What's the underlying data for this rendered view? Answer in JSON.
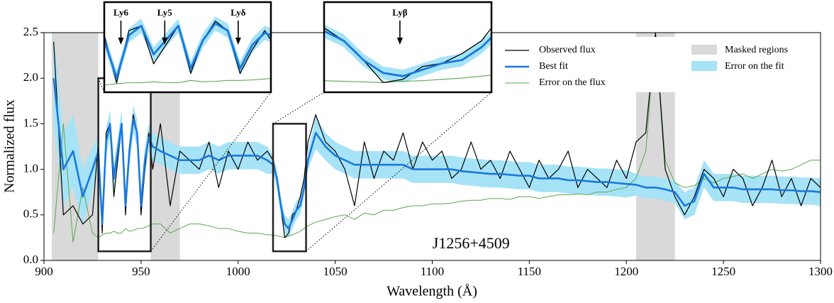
{
  "chart_data": {
    "type": "line",
    "xlabel": "Wavelength (Å)",
    "ylabel": "Normalized flux",
    "xlim": [
      900,
      1300
    ],
    "ylim": [
      0,
      2.5
    ],
    "xticks": [
      900,
      950,
      1000,
      1050,
      1100,
      1150,
      1200,
      1250,
      1300
    ],
    "yticks": [
      {
        "value": 0,
        "label": "0.0"
      },
      0.5,
      {
        "value": 1,
        "label": "1.0"
      },
      1.5,
      {
        "value": 2,
        "label": "2.0"
      },
      2.5
    ],
    "annotation": {
      "text": "J1256+4509",
      "x": 1120,
      "y": 0.17
    },
    "x": [
      900,
      905,
      910,
      915,
      920,
      925,
      928,
      930,
      932,
      934,
      936,
      938,
      940,
      942,
      944,
      946,
      948,
      950,
      952,
      954,
      956,
      960,
      965,
      970,
      975,
      980,
      985,
      990,
      995,
      1000,
      1005,
      1010,
      1015,
      1018,
      1020,
      1022,
      1024,
      1026,
      1028,
      1030,
      1032,
      1034,
      1036,
      1040,
      1045,
      1050,
      1055,
      1060,
      1065,
      1070,
      1075,
      1080,
      1085,
      1090,
      1095,
      1100,
      1105,
      1110,
      1115,
      1120,
      1125,
      1130,
      1135,
      1140,
      1145,
      1150,
      1155,
      1160,
      1165,
      1170,
      1175,
      1180,
      1185,
      1190,
      1195,
      1200,
      1205,
      1210,
      1215,
      1220,
      1225,
      1230,
      1235,
      1240,
      1245,
      1250,
      1255,
      1260,
      1265,
      1270,
      1275,
      1280,
      1285,
      1290,
      1295,
      1300
    ],
    "series": [
      {
        "name": "Observed flux",
        "color": "#000000",
        "width": 1.2,
        "values": [
          null,
          2.4,
          0.5,
          0.6,
          0.4,
          0.5,
          1.3,
          0.3,
          1.4,
          1.5,
          0.7,
          1.1,
          1.5,
          0.5,
          1.2,
          1.6,
          1.4,
          0.5,
          1.0,
          1.4,
          1.0,
          1.5,
          0.6,
          1.2,
          1.1,
          1.0,
          1.3,
          0.8,
          1.2,
          1.0,
          1.3,
          1.1,
          1.2,
          1.1,
          0.9,
          0.6,
          0.25,
          0.3,
          0.5,
          0.55,
          0.7,
          0.9,
          1.3,
          1.6,
          1.3,
          1.2,
          1.0,
          0.6,
          1.3,
          0.9,
          1.2,
          1.1,
          1.4,
          1.0,
          1.3,
          1.1,
          1.2,
          0.9,
          1.0,
          1.3,
          1.0,
          1.1,
          0.9,
          1.2,
          1.0,
          0.8,
          1.1,
          0.9,
          1.0,
          1.2,
          0.8,
          1.0,
          0.9,
          0.8,
          1.1,
          0.9,
          1.3,
          1.4,
          2.5,
          1.0,
          0.7,
          0.5,
          0.7,
          1.0,
          0.9,
          0.7,
          1.0,
          0.9,
          0.6,
          0.8,
          1.1,
          0.7,
          0.9,
          0.6,
          0.9,
          0.8
        ]
      },
      {
        "name": "Best fit",
        "color": "#1a78dc",
        "width": 2.6,
        "values": [
          null,
          2.0,
          1.0,
          1.2,
          0.7,
          1.0,
          1.2,
          0.4,
          1.3,
          1.5,
          0.9,
          1.2,
          1.5,
          0.6,
          1.2,
          1.55,
          1.4,
          0.6,
          1.1,
          1.35,
          1.25,
          1.2,
          1.15,
          1.1,
          1.1,
          1.1,
          1.15,
          1.1,
          1.15,
          1.15,
          1.15,
          1.15,
          1.1,
          1.05,
          0.9,
          0.6,
          0.4,
          0.35,
          0.45,
          0.55,
          0.6,
          0.8,
          1.1,
          1.4,
          1.25,
          1.15,
          1.1,
          1.05,
          1.05,
          1.05,
          1.05,
          1.05,
          1.05,
          1.0,
          1.0,
          1.0,
          1.0,
          1.0,
          0.98,
          0.97,
          0.96,
          0.95,
          0.95,
          0.94,
          0.93,
          0.93,
          0.9,
          0.9,
          0.9,
          0.88,
          0.88,
          0.87,
          0.86,
          0.86,
          0.85,
          0.84,
          0.83,
          0.8,
          0.8,
          0.78,
          0.75,
          0.6,
          0.65,
          0.95,
          0.8,
          0.8,
          0.8,
          0.78,
          0.78,
          0.78,
          0.78,
          0.77,
          0.77,
          0.76,
          0.76,
          0.75
        ]
      },
      {
        "name": "Error on the flux",
        "color": "#5aa84f",
        "width": 1,
        "values": [
          null,
          0.3,
          1.5,
          0.2,
          0.8,
          0.3,
          0.25,
          0.28,
          0.3,
          0.3,
          0.32,
          0.3,
          0.3,
          0.35,
          0.32,
          0.33,
          0.35,
          0.35,
          0.36,
          0.38,
          0.4,
          0.4,
          0.3,
          0.35,
          0.4,
          0.4,
          0.38,
          0.35,
          0.35,
          0.32,
          0.3,
          0.3,
          0.28,
          0.28,
          0.27,
          0.26,
          0.25,
          0.27,
          0.28,
          0.3,
          0.32,
          0.35,
          0.38,
          0.42,
          0.45,
          0.48,
          0.5,
          0.45,
          0.52,
          0.5,
          0.55,
          0.55,
          0.58,
          0.6,
          0.6,
          0.62,
          0.62,
          0.63,
          0.65,
          0.66,
          0.66,
          0.68,
          0.68,
          0.67,
          0.7,
          0.7,
          0.68,
          0.7,
          0.72,
          0.72,
          0.73,
          0.72,
          0.75,
          0.75,
          0.78,
          0.8,
          0.9,
          1.2,
          2.5,
          1.1,
          0.85,
          0.8,
          0.82,
          0.9,
          0.85,
          0.9,
          0.92,
          0.95,
          0.9,
          0.95,
          1.0,
          0.98,
          1.0,
          1.05,
          1.1,
          1.1
        ]
      }
    ],
    "fit_error": {
      "name": "Error on the fit",
      "color": "#a6e3f7",
      "values": [
        null,
        0.5,
        0.4,
        0.4,
        0.3,
        0.25,
        0.15,
        0.15,
        0.15,
        0.15,
        0.15,
        0.15,
        0.15,
        0.15,
        0.15,
        0.15,
        0.15,
        0.15,
        0.15,
        0.15,
        0.15,
        0.15,
        0.15,
        0.15,
        0.15,
        0.15,
        0.15,
        0.15,
        0.15,
        0.15,
        0.15,
        0.15,
        0.15,
        0.1,
        0.1,
        0.1,
        0.1,
        0.1,
        0.1,
        0.1,
        0.1,
        0.1,
        0.1,
        0.18,
        0.15,
        0.15,
        0.15,
        0.15,
        0.15,
        0.15,
        0.15,
        0.15,
        0.15,
        0.15,
        0.15,
        0.15,
        0.15,
        0.15,
        0.15,
        0.15,
        0.15,
        0.15,
        0.15,
        0.15,
        0.15,
        0.15,
        0.15,
        0.15,
        0.15,
        0.15,
        0.15,
        0.15,
        0.15,
        0.15,
        0.15,
        0.15,
        0.12,
        0.12,
        0.12,
        0.12,
        0.12,
        0.15,
        0.15,
        0.15,
        0.15,
        0.15,
        0.15,
        0.15,
        0.15,
        0.15,
        0.15,
        0.15,
        0.15,
        0.15,
        0.15,
        0.15
      ]
    },
    "masked_regions": {
      "name": "Masked regions",
      "color": "#d9d9d9",
      "ranges": [
        [
          904,
          928
        ],
        [
          955,
          970
        ],
        [
          1205,
          1225
        ]
      ]
    },
    "insets": [
      {
        "xlim": [
          928,
          955
        ],
        "ylim": [
          0.1,
          2.0
        ],
        "lines": [
          {
            "label": "Ly6",
            "x": 930.7
          },
          {
            "label": "Ly5",
            "x": 937.8
          },
          {
            "label": "Lyδ",
            "x": 949.7
          }
        ]
      },
      {
        "xlim": [
          1018,
          1035
        ],
        "ylim": [
          0.1,
          1.5
        ],
        "lines": [
          {
            "label": "Lyβ",
            "x": 1025.7
          }
        ]
      }
    ]
  }
}
